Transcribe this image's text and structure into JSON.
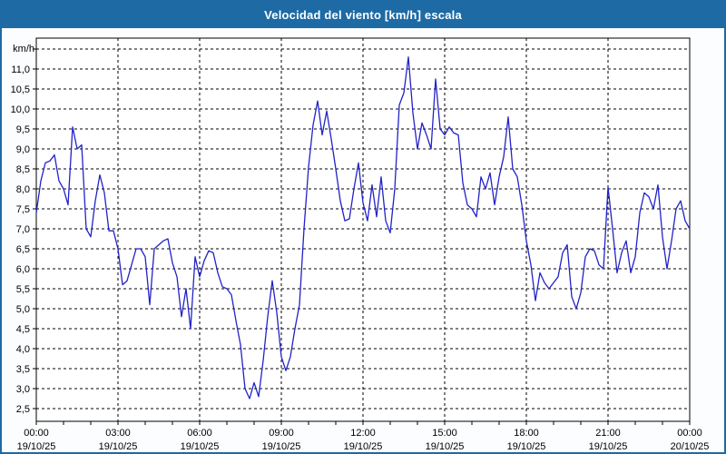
{
  "window": {
    "title": "Velocidad del viento [km/h] escala"
  },
  "colors": {
    "titlebar": "#1d6aa5",
    "window_border": "#1d6aa5",
    "background": "#fcfdfe",
    "plot_background": "#ffffff",
    "plot_border": "#000000",
    "grid": "#000000",
    "line": "#2222c8",
    "title_text": "#ffffff",
    "axis_text": "#000000"
  },
  "chart_data": {
    "type": "line",
    "title": "Velocidad del viento [km/h] escala",
    "ylabel": "km/h",
    "unit": "km/h",
    "grid": "dashed",
    "legend_position": "none",
    "x_start": "00:00 19/10/25",
    "x_step_minutes": 10,
    "x_total_hours": 24,
    "ylim": [
      2.2,
      11.75
    ],
    "y_grid_min": 2.5,
    "y_grid_max": 11.5,
    "y_grid_step": 0.5,
    "y_label_max": 11.0,
    "x_axis_ticks": [
      {
        "time": "00:00",
        "date": "19/10/25"
      },
      {
        "time": "03:00",
        "date": "19/10/25"
      },
      {
        "time": "06:00",
        "date": "19/10/25"
      },
      {
        "time": "09:00",
        "date": "19/10/25"
      },
      {
        "time": "12:00",
        "date": "19/10/25"
      },
      {
        "time": "15:00",
        "date": "19/10/25"
      },
      {
        "time": "18:00",
        "date": "19/10/25"
      },
      {
        "time": "21:00",
        "date": "19/10/25"
      },
      {
        "time": "00:00",
        "date": "20/10/25"
      }
    ],
    "series": [
      {
        "name": "Velocidad del viento",
        "values": [
          7.4,
          8.2,
          8.65,
          8.7,
          8.85,
          8.2,
          8.0,
          7.6,
          9.55,
          9.0,
          9.1,
          7.0,
          6.8,
          7.7,
          8.35,
          7.9,
          6.95,
          6.95,
          6.5,
          5.6,
          5.7,
          6.1,
          6.5,
          6.5,
          6.3,
          5.1,
          6.5,
          6.6,
          6.7,
          6.75,
          6.15,
          5.8,
          4.8,
          5.5,
          4.5,
          6.3,
          5.8,
          6.2,
          6.45,
          6.4,
          5.9,
          5.55,
          5.5,
          5.35,
          4.7,
          4.1,
          3.0,
          2.75,
          3.15,
          2.8,
          3.7,
          4.8,
          5.7,
          4.9,
          3.8,
          3.45,
          3.8,
          4.5,
          5.1,
          7.0,
          8.55,
          9.6,
          10.2,
          9.35,
          9.95,
          9.25,
          8.5,
          7.7,
          7.2,
          7.25,
          8.0,
          8.65,
          7.65,
          7.2,
          8.1,
          7.3,
          8.3,
          7.2,
          6.9,
          8.0,
          10.1,
          10.4,
          11.3,
          9.9,
          9.0,
          9.65,
          9.35,
          9.0,
          10.75,
          9.5,
          9.35,
          9.55,
          9.4,
          9.35,
          8.15,
          7.6,
          7.5,
          7.3,
          8.3,
          8.0,
          8.4,
          7.6,
          8.3,
          8.8,
          9.8,
          8.5,
          8.3,
          7.6,
          6.7,
          6.1,
          5.2,
          5.9,
          5.65,
          5.5,
          5.65,
          5.8,
          6.4,
          6.6,
          5.3,
          5.0,
          5.4,
          6.3,
          6.5,
          6.45,
          6.1,
          6.0,
          8.05,
          7.0,
          5.9,
          6.4,
          6.7,
          5.9,
          6.3,
          7.4,
          7.9,
          7.8,
          7.5,
          8.1,
          6.8,
          6.0,
          6.7,
          7.5,
          7.7,
          7.2,
          7.0
        ]
      }
    ]
  }
}
